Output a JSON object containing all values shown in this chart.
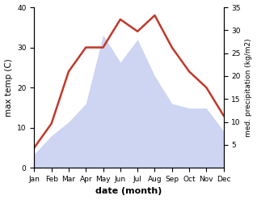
{
  "months": [
    "Jan",
    "Feb",
    "Mar",
    "Apr",
    "May",
    "Jun",
    "Jul",
    "Aug",
    "Sep",
    "Oct",
    "Nov",
    "Dec"
  ],
  "temperature": [
    5,
    11,
    24,
    30,
    30,
    37,
    34,
    38,
    30,
    24,
    20,
    13
  ],
  "precipitation": [
    3,
    7,
    10,
    14,
    29,
    23,
    28,
    20,
    14,
    13,
    13,
    8
  ],
  "temp_color": "#c0392b",
  "precip_color_fill": "#b8c4ee",
  "temp_ylim": [
    0,
    40
  ],
  "temp_yticks": [
    0,
    10,
    20,
    30,
    40
  ],
  "precip_ylim": [
    0,
    35
  ],
  "precip_yticks": [
    5,
    10,
    15,
    20,
    25,
    30,
    35
  ],
  "ylabel_left": "max temp (C)",
  "ylabel_right": "med. precipitation (kg/m2)",
  "xlabel": "date (month)",
  "background_color": "#ffffff"
}
